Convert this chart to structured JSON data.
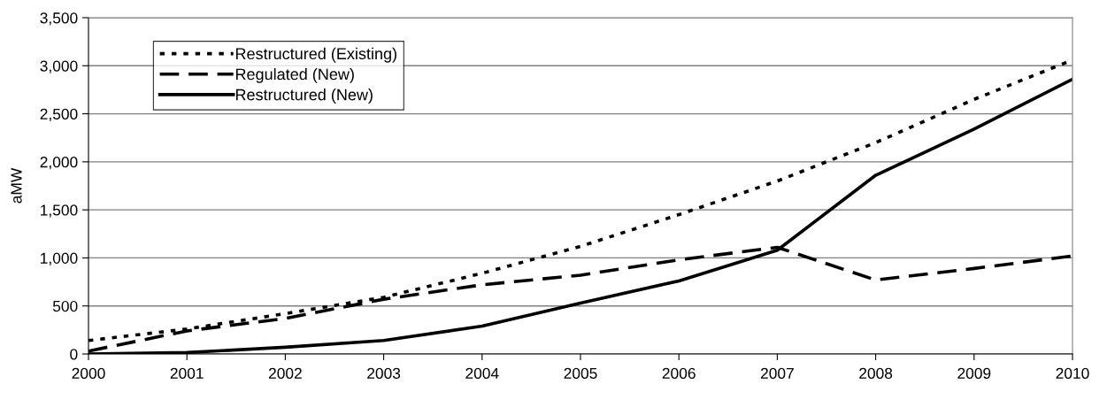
{
  "chart_data": {
    "type": "line",
    "ylabel": "aMW",
    "x": [
      2000,
      2001,
      2002,
      2003,
      2004,
      2005,
      2006,
      2007,
      2008,
      2009,
      2010
    ],
    "series": [
      {
        "name": "Restructured (Existing)",
        "color": "#000000",
        "line_style": "dotted",
        "values": [
          140,
          260,
          420,
          590,
          840,
          1120,
          1450,
          1800,
          2200,
          2650,
          3060
        ]
      },
      {
        "name": "Regulated (New)",
        "color": "#000000",
        "line_style": "dashed",
        "values": [
          30,
          240,
          370,
          570,
          720,
          820,
          980,
          1110,
          770,
          890,
          1020
        ]
      },
      {
        "name": "Restructured (New)",
        "color": "#000000",
        "line_style": "solid",
        "values": [
          0,
          15,
          70,
          140,
          290,
          530,
          760,
          1080,
          1860,
          2340,
          2860
        ]
      }
    ],
    "xlim": [
      2000,
      2010
    ],
    "xticks": [
      2000,
      2001,
      2002,
      2003,
      2004,
      2005,
      2006,
      2007,
      2008,
      2009,
      2010
    ],
    "ylim": [
      0,
      3500
    ],
    "yticks": [
      {
        "value": 0,
        "label": "0"
      },
      {
        "value": 500,
        "label": "500"
      },
      {
        "value": 1000,
        "label": "1,000"
      },
      {
        "value": 1500,
        "label": "1,500"
      },
      {
        "value": 2000,
        "label": "2,000"
      },
      {
        "value": 2500,
        "label": "2,500"
      },
      {
        "value": 3000,
        "label": "3,000"
      },
      {
        "value": 3500,
        "label": "3,500"
      }
    ],
    "grid": "y",
    "legend": "top left",
    "marker": "none"
  }
}
